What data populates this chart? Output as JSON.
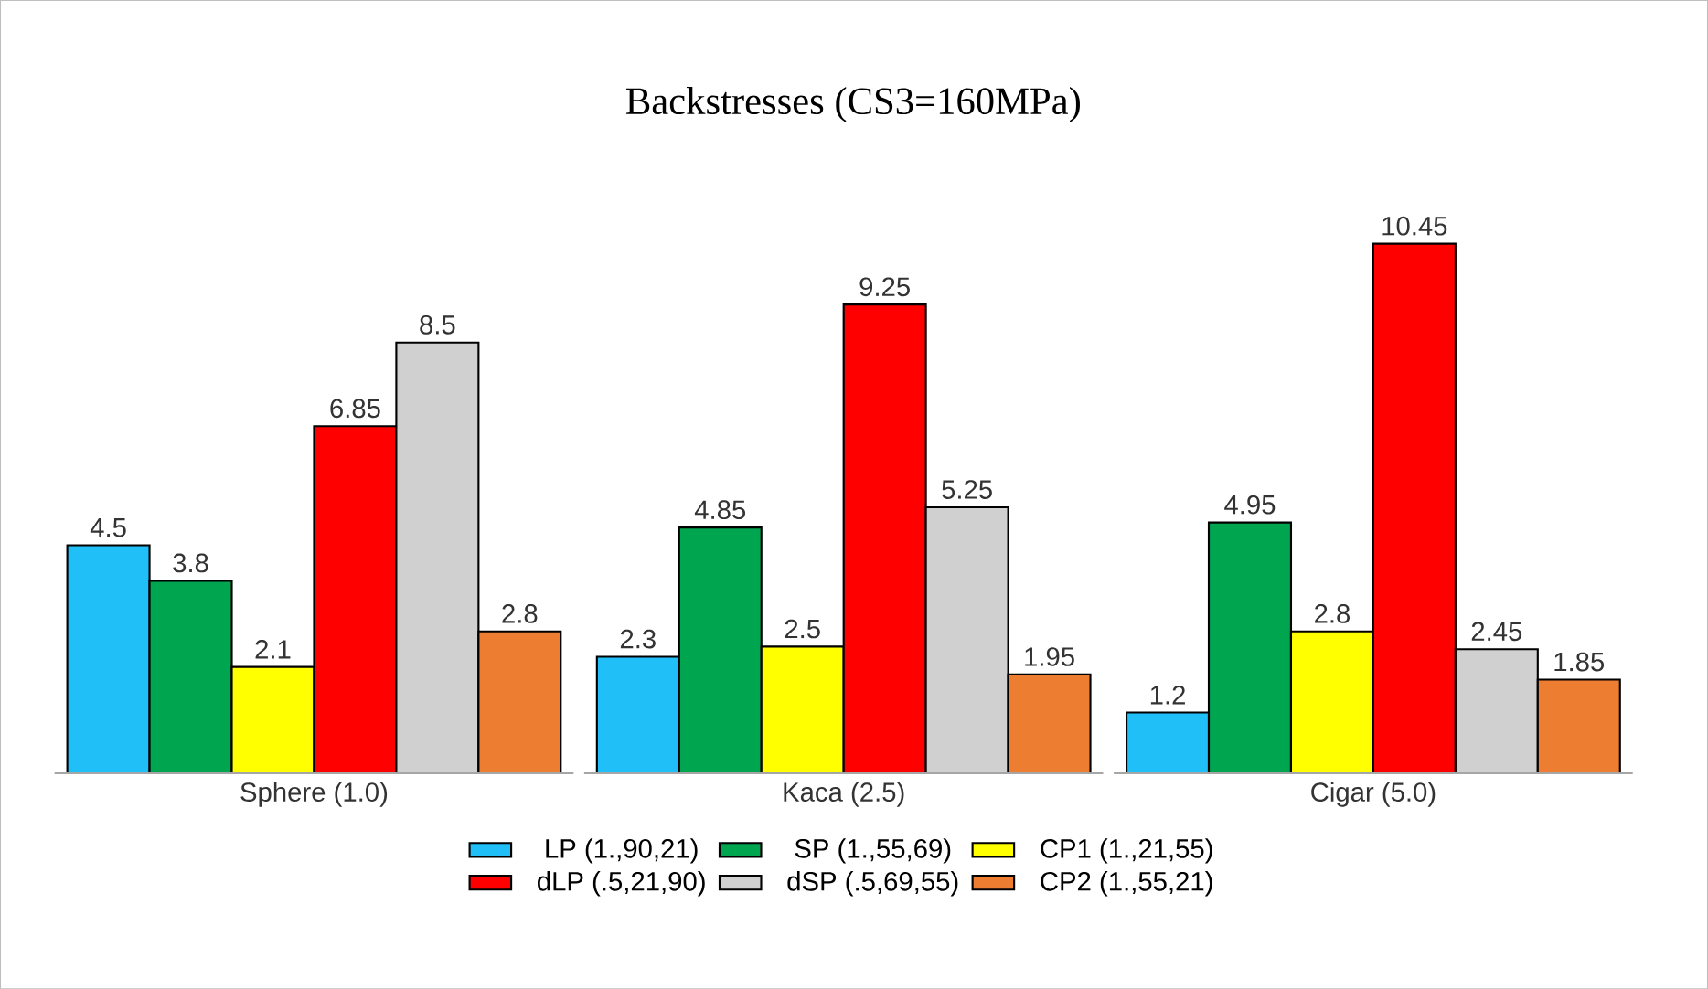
{
  "chart_data": {
    "type": "bar",
    "title": "Backstresses (CS3=160MPa)",
    "categories": [
      "Sphere (1.0)",
      "Kaca (2.5)",
      "Cigar (5.0)"
    ],
    "series": [
      {
        "name": "LP (1.,90,21)",
        "color": "#20bff7",
        "values": [
          4.5,
          2.3,
          1.2
        ]
      },
      {
        "name": "SP (1.,55,69)",
        "color": "#00a550",
        "values": [
          3.8,
          4.85,
          4.95
        ]
      },
      {
        "name": "CP1 (1.,21,55)",
        "color": "#ffff00",
        "values": [
          2.1,
          2.5,
          2.8
        ]
      },
      {
        "name": "dLP (.5,21,90)",
        "color": "#ff0000",
        "values": [
          6.85,
          9.25,
          10.45
        ]
      },
      {
        "name": "dSP (.5,69,55)",
        "color": "#d0d0d0",
        "values": [
          8.5,
          5.25,
          2.45
        ]
      },
      {
        "name": "CP2 (1.,55,21)",
        "color": "#ed7d31",
        "values": [
          2.8,
          1.95,
          1.85
        ]
      }
    ],
    "data_labels": true,
    "legend": "bottom"
  }
}
